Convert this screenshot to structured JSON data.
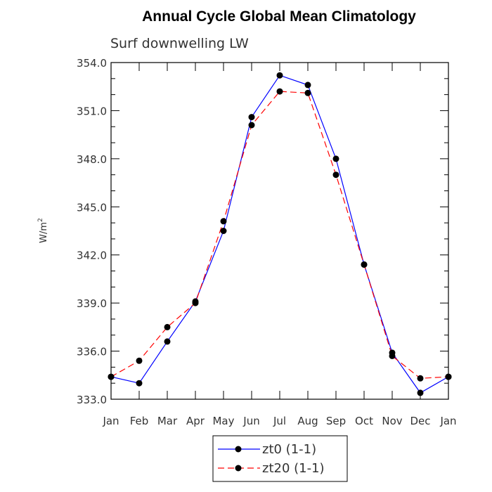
{
  "chart_data": {
    "type": "line",
    "title": "Annual Cycle Global Mean Climatology",
    "subtitle": "Surf downwelling LW",
    "ylabel": "W/m",
    "ylabel_sup": "2",
    "xlabel": "",
    "categories": [
      "Jan",
      "Feb",
      "Mar",
      "Apr",
      "May",
      "Jun",
      "Jul",
      "Aug",
      "Sep",
      "Oct",
      "Nov",
      "Dec",
      "Jan"
    ],
    "ylim": [
      333.0,
      354.0
    ],
    "yticks": [
      "333.0",
      "336.0",
      "339.0",
      "342.0",
      "345.0",
      "348.0",
      "351.0",
      "354.0"
    ],
    "series": [
      {
        "name": "zt0 (1-1)",
        "color": "#0000ff",
        "dash": "solid",
        "values": [
          334.4,
          334.0,
          336.6,
          339.1,
          343.5,
          350.6,
          353.2,
          352.6,
          348.0,
          341.4,
          335.9,
          333.4,
          334.4
        ]
      },
      {
        "name": "zt20 (1-1)",
        "color": "#ff0000",
        "dash": "dashed",
        "values": [
          334.4,
          335.4,
          337.5,
          339.0,
          344.1,
          350.1,
          352.2,
          352.1,
          347.0,
          341.4,
          335.7,
          334.3,
          334.4
        ]
      }
    ],
    "legend_position": "bottom-center",
    "grid": false
  }
}
